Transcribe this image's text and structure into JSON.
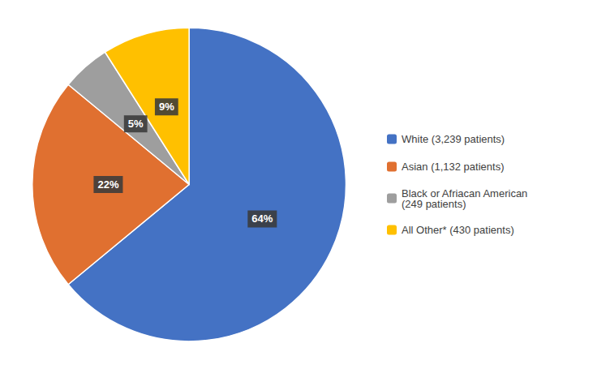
{
  "chart_data": {
    "type": "pie",
    "categories": [
      "White (3,239 patients)",
      "Asian (1,132 patients)",
      "Black or Afriacan American\n(249 patients)",
      "All Other* (430 patients)"
    ],
    "values": [
      64,
      22,
      5,
      9
    ],
    "value_labels": [
      "64%",
      "22%",
      "5%",
      "9%"
    ],
    "colors": [
      "#4472C4",
      "#E07030",
      "#9E9E9E",
      "#FFC000"
    ],
    "data_labels": true,
    "legend": "right"
  }
}
